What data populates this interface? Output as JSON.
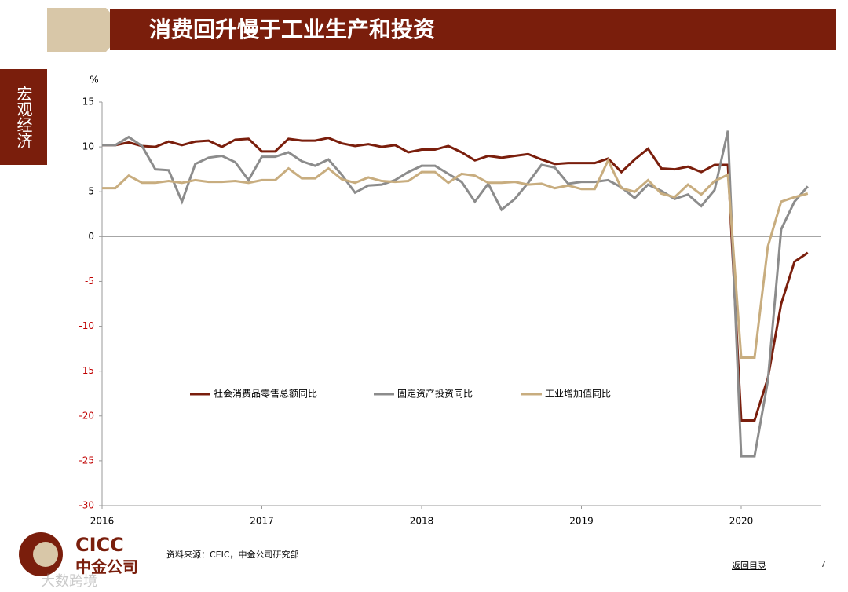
{
  "header_title": "消费回升慢于工业生产和投资",
  "side_label": "宏观经济",
  "source": "资料来源：CEIC，中金公司研究部",
  "back_link": "返回目录",
  "page_number": "7",
  "logo": {
    "en": "CICC",
    "cn": "中金公司"
  },
  "watermark": "大数跨境",
  "chart_data": {
    "type": "line",
    "ylabel": "%",
    "categories": [
      "2016",
      null,
      null,
      null,
      null,
      null,
      null,
      null,
      null,
      null,
      null,
      null,
      "2017",
      null,
      null,
      null,
      null,
      null,
      null,
      null,
      null,
      null,
      null,
      null,
      "2018",
      null,
      null,
      null,
      null,
      null,
      null,
      null,
      null,
      null,
      null,
      null,
      "2019",
      null,
      null,
      null,
      null,
      null,
      null,
      null,
      null,
      null,
      null,
      null,
      "2020",
      null,
      null,
      null,
      null,
      null
    ],
    "series": [
      {
        "name": "社会消费品零售总额同比",
        "color": "#7a1e0c",
        "values": [
          10.2,
          10.2,
          10.5,
          10.1,
          10.0,
          10.6,
          10.2,
          10.6,
          10.7,
          10.0,
          10.8,
          10.9,
          9.5,
          9.5,
          10.9,
          10.7,
          10.7,
          11.0,
          10.4,
          10.1,
          10.3,
          10.0,
          10.2,
          9.4,
          9.7,
          9.7,
          10.1,
          9.4,
          8.5,
          9.0,
          8.8,
          9.0,
          9.2,
          8.6,
          8.1,
          8.2,
          8.2,
          8.2,
          8.7,
          7.2,
          8.6,
          9.8,
          7.6,
          7.5,
          7.8,
          7.2,
          8.0,
          8.0,
          -20.5,
          -20.5,
          -15.8,
          -7.5,
          -2.8,
          -1.8
        ]
      },
      {
        "name": "固定资产投资同比",
        "color": "#8c8c8c",
        "values": [
          10.2,
          10.2,
          11.1,
          10.1,
          7.5,
          7.4,
          3.9,
          8.1,
          8.8,
          9.0,
          8.3,
          6.3,
          8.9,
          8.9,
          9.4,
          8.4,
          7.9,
          8.6,
          6.9,
          4.9,
          5.7,
          5.8,
          6.3,
          7.2,
          7.9,
          7.9,
          7.0,
          6.1,
          3.9,
          5.9,
          3.0,
          4.2,
          6.0,
          8.0,
          7.7,
          5.9,
          6.1,
          6.1,
          6.3,
          5.5,
          4.3,
          5.8,
          5.1,
          4.2,
          4.7,
          3.4,
          5.2,
          11.8,
          -24.5,
          -24.5,
          -16.1,
          0.8,
          3.9,
          5.6
        ]
      },
      {
        "name": "工业增加值同比",
        "color": "#c8ad7f",
        "values": [
          5.4,
          5.4,
          6.8,
          6.0,
          6.0,
          6.2,
          6.0,
          6.3,
          6.1,
          6.1,
          6.2,
          6.0,
          6.3,
          6.3,
          7.6,
          6.5,
          6.5,
          7.6,
          6.4,
          6.0,
          6.6,
          6.2,
          6.1,
          6.2,
          7.2,
          7.2,
          6.0,
          7.0,
          6.8,
          6.0,
          6.0,
          6.1,
          5.8,
          5.9,
          5.4,
          5.7,
          5.3,
          5.3,
          8.5,
          5.4,
          5.0,
          6.3,
          4.8,
          4.4,
          5.8,
          4.7,
          6.2,
          6.9,
          -13.5,
          -13.5,
          -1.1,
          3.9,
          4.4,
          4.8
        ]
      }
    ],
    "ylim": [
      -30,
      15
    ],
    "yticks": [
      -30,
      -25,
      -20,
      -15,
      -10,
      -5,
      0,
      5,
      10,
      15
    ],
    "negative_tick_color": "#c00000"
  }
}
